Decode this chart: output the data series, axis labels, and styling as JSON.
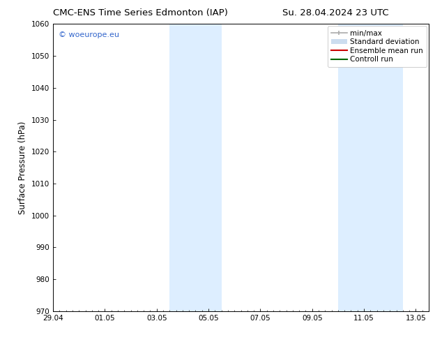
{
  "title_left": "CMC-ENS Time Series Edmonton (IAP)",
  "title_right": "Su. 28.04.2024 23 UTC",
  "ylabel": "Surface Pressure (hPa)",
  "ylim": [
    970,
    1060
  ],
  "yticks": [
    970,
    980,
    990,
    1000,
    1010,
    1020,
    1030,
    1040,
    1050,
    1060
  ],
  "xlim_start": 0.0,
  "xlim_end": 14.5,
  "xtick_labels": [
    "29.04",
    "01.05",
    "03.05",
    "05.05",
    "07.05",
    "09.05",
    "11.05",
    "13.05"
  ],
  "xtick_positions": [
    0.0,
    2.0,
    4.0,
    6.0,
    8.0,
    10.0,
    12.0,
    14.0
  ],
  "shaded_bands": [
    {
      "xmin": 4.5,
      "xmax": 6.5
    },
    {
      "xmin": 11.0,
      "xmax": 13.5
    }
  ],
  "shaded_color": "#ddeeff",
  "watermark_text": "© woeurope.eu",
  "watermark_color": "#3366cc",
  "legend_items": [
    {
      "label": "min/max",
      "color": "#aaaaaa",
      "lw": 1.2,
      "style": "ibar"
    },
    {
      "label": "Standard deviation",
      "color": "#ccddef",
      "lw": 7,
      "style": "band"
    },
    {
      "label": "Ensemble mean run",
      "color": "#cc0000",
      "lw": 1.5,
      "style": "line"
    },
    {
      "label": "Controll run",
      "color": "#006600",
      "lw": 1.5,
      "style": "line"
    }
  ],
  "bg_color": "#ffffff",
  "plot_bg_color": "#ffffff",
  "spine_color": "#000000",
  "tick_color": "#000000",
  "title_fontsize": 9.5,
  "label_fontsize": 8.5,
  "tick_fontsize": 7.5,
  "legend_fontsize": 7.5,
  "watermark_fontsize": 8
}
